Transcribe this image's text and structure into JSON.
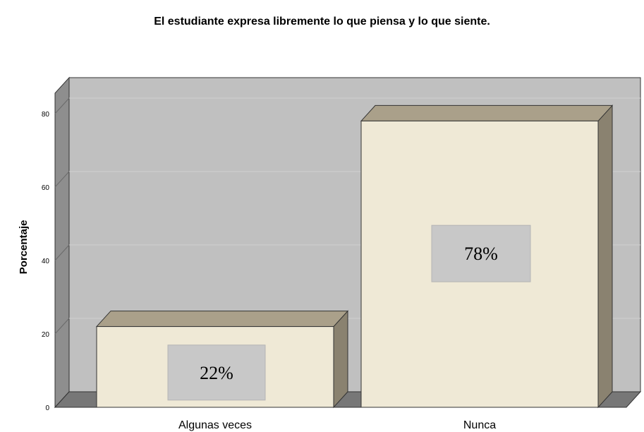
{
  "chart_data": {
    "type": "bar",
    "title": "El estudiante expresa libremente lo que piensa y lo que siente.",
    "xlabel": "",
    "ylabel": "Porcentaje",
    "categories": [
      "Algunas veces",
      "Nunca"
    ],
    "values": [
      22,
      78
    ],
    "data_labels": [
      "22%",
      "78%"
    ],
    "yticks": [
      0,
      20,
      40,
      60,
      80
    ],
    "ylim": [
      0,
      85
    ],
    "grid": true,
    "style": "3d",
    "colors": {
      "wall": "#c0c0c0",
      "wall_side": "#8e8e8e",
      "floor": "#777777",
      "bar_front": "#efe9d6",
      "bar_top": "#aaa08a",
      "bar_side": "#8a8270",
      "label_box": "#c8c8c8",
      "grid": "#d0d0d0"
    }
  }
}
